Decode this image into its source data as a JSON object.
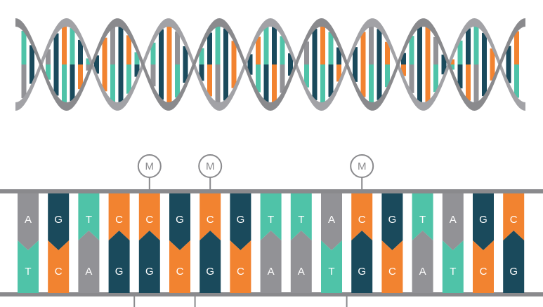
{
  "colors": {
    "A": "#929296",
    "T": "#4fc3a8",
    "C": "#f28330",
    "G": "#1a4a5c",
    "backbone": "#8a8a8d",
    "bg": "#ffffff"
  },
  "methyl_marker": "M",
  "top_strand": [
    "A",
    "G",
    "T",
    "C",
    "C",
    "G",
    "C",
    "G",
    "T",
    "T",
    "A",
    "C",
    "G",
    "T",
    "A",
    "G",
    "C"
  ],
  "bottom_strand": [
    "T",
    "C",
    "A",
    "G",
    "G",
    "C",
    "G",
    "C",
    "A",
    "A",
    "T",
    "G",
    "C",
    "A",
    "T",
    "C",
    "G"
  ],
  "methylated_positions": [
    4,
    6,
    11
  ],
  "helix_turns": 5
}
